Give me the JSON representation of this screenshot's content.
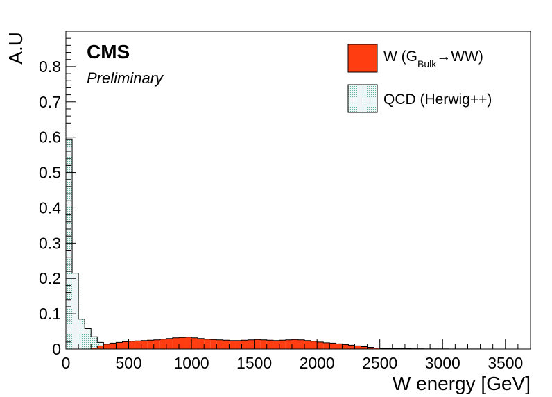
{
  "colors": {
    "signal_fill": "#ff3d10",
    "background_fill": "#eef7f5",
    "background_hatch": "#3fa58c",
    "axis": "#000000"
  },
  "labels": {
    "cms": "CMS",
    "preliminary": "Preliminary"
  },
  "legend": {
    "signal_pre": "W (G",
    "signal_sub": "Bulk",
    "signal_arrow": "→",
    "signal_post": "WW)",
    "background": "QCD (Herwig++)"
  },
  "chart_data": {
    "type": "histogram",
    "xlabel": "W energy [GeV]",
    "ylabel": "A.U",
    "xlim": [
      0,
      3700
    ],
    "ylim": [
      0,
      0.9
    ],
    "x_ticks": [
      0,
      500,
      1000,
      1500,
      2000,
      2500,
      3000,
      3500
    ],
    "x_tick_labels": [
      "0",
      "500",
      "1000",
      "1500",
      "2000",
      "2500",
      "3000",
      "3500"
    ],
    "y_ticks": [
      0,
      0.1,
      0.2,
      0.3,
      0.4,
      0.5,
      0.6,
      0.7,
      0.8
    ],
    "y_tick_labels": [
      "0",
      "0.1",
      "0.2",
      "0.3",
      "0.4",
      "0.5",
      "0.6",
      "0.7",
      "0.8"
    ],
    "legend_position": "top-right",
    "grid": false,
    "bin_width": 50,
    "series": [
      {
        "name": "QCD (Herwig++)",
        "style": "hatched",
        "bin_start": 0,
        "values": [
          0.595,
          0.215,
          0.085,
          0.058,
          0.035,
          0.019,
          0.011,
          0.006,
          0.004,
          0.003,
          0.002,
          0.0015,
          0.001,
          0.001,
          0.0008,
          0.0006,
          0.0005,
          0.0004,
          0.0003,
          0.0003,
          0.0002,
          0.0002,
          0.0002,
          0.0001,
          0.0001,
          0.0001,
          0.0001,
          0.0001,
          0.0001,
          0.0001,
          0.0001,
          0.0001,
          0.0001,
          0.0001,
          0.0001,
          0.0001,
          0.0001,
          0.0001,
          0.0001,
          0.0001,
          0.0001,
          0.0001,
          0.0001,
          0.0001,
          0.0001,
          0.0001,
          0.0001,
          0.0001,
          0.0001,
          0.0001,
          0.0001,
          0.0001,
          0.0001,
          0.0001,
          0.0001,
          0.0001,
          0.0001,
          0.0001,
          0.0001,
          0.0001,
          0.0001,
          0.0001,
          0.0001,
          0.0001,
          0.0001,
          0.0001,
          0.0001,
          0.0001,
          0.0001,
          0.0001,
          0.0001,
          0.0001,
          0.0001,
          0.0001
        ]
      },
      {
        "name": "W (GBulk→WW)",
        "style": "filled",
        "bin_start": 0,
        "values": [
          0,
          0,
          0,
          0,
          0.003,
          0.009,
          0.014,
          0.017,
          0.019,
          0.021,
          0.022,
          0.023,
          0.024,
          0.025,
          0.026,
          0.028,
          0.03,
          0.032,
          0.033,
          0.034,
          0.032,
          0.03,
          0.028,
          0.027,
          0.026,
          0.025,
          0.024,
          0.024,
          0.025,
          0.026,
          0.027,
          0.026,
          0.025,
          0.024,
          0.025,
          0.026,
          0.027,
          0.026,
          0.024,
          0.022,
          0.02,
          0.018,
          0.017,
          0.015,
          0.013,
          0.011,
          0.009,
          0.007,
          0.005,
          0.003,
          0.002,
          0.002,
          0.001,
          0.001,
          0.001,
          0.0008,
          0.0007,
          0.0006,
          0.0005,
          0.0004,
          0.0004,
          0.0003,
          0.0003,
          0.0002,
          0.0002,
          0.0002,
          0.0001,
          0.0001,
          0.0001,
          0.0001,
          0.0001,
          0.0001,
          0.0001,
          0.0001
        ]
      }
    ]
  }
}
